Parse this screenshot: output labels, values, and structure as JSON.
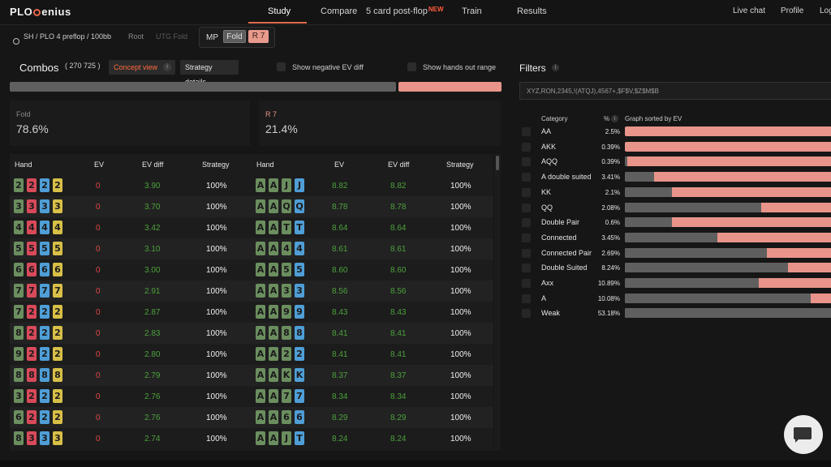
{
  "brand": {
    "left": "PLO",
    "right": "enius"
  },
  "nav": {
    "tabs": [
      "Study",
      "Compare",
      "5 card post-flop",
      "Train",
      "Results"
    ],
    "new_badge": "NEW",
    "right": [
      "Live chat",
      "Profile",
      "Log"
    ]
  },
  "breadcrumb": {
    "game": "SH / PLO 4 preflop / 100bb",
    "root": "Root",
    "utg": "UTG Fold"
  },
  "action": {
    "position": "MP",
    "fold": "Fold",
    "raise": "R 7"
  },
  "combos": {
    "title": "Combos",
    "count": "( 270 725 )",
    "concept_view": "Concept view",
    "info": "i",
    "strategy_details": "Strategy details",
    "show_negative": "Show negative EV diff",
    "show_hands_out": "Show hands out range",
    "fold_fraction": 0.786,
    "fold_label": "Fold",
    "fold_value": "78.6%",
    "raise_label": "R 7",
    "raise_value": "21.4%"
  },
  "colors": {
    "spade": "#6b8e5f",
    "heart": "#d84a5a",
    "diamond": "#4f9ed6",
    "club": "#d8bf47",
    "fold_bar": "#5f5f5f",
    "raise_bar": "#e8948a",
    "positive": "#4ca13c",
    "zero": "#e04646",
    "accent": "#ff6a3d"
  },
  "table": {
    "headers": [
      "Hand",
      "EV",
      "EV diff",
      "Strategy",
      "Hand",
      "EV",
      "EV diff",
      "Strategy"
    ],
    "left": [
      {
        "cards": [
          [
            "2",
            "g"
          ],
          [
            "2",
            "r"
          ],
          [
            "2",
            "b"
          ],
          [
            "2",
            "y"
          ]
        ],
        "ev": "0",
        "evdiff": "3.90",
        "strategy": "100%"
      },
      {
        "cards": [
          [
            "3",
            "g"
          ],
          [
            "3",
            "r"
          ],
          [
            "3",
            "b"
          ],
          [
            "3",
            "y"
          ]
        ],
        "ev": "0",
        "evdiff": "3.70",
        "strategy": "100%"
      },
      {
        "cards": [
          [
            "4",
            "g"
          ],
          [
            "4",
            "r"
          ],
          [
            "4",
            "b"
          ],
          [
            "4",
            "y"
          ]
        ],
        "ev": "0",
        "evdiff": "3.42",
        "strategy": "100%"
      },
      {
        "cards": [
          [
            "5",
            "g"
          ],
          [
            "5",
            "r"
          ],
          [
            "5",
            "b"
          ],
          [
            "5",
            "y"
          ]
        ],
        "ev": "0",
        "evdiff": "3.10",
        "strategy": "100%"
      },
      {
        "cards": [
          [
            "6",
            "g"
          ],
          [
            "6",
            "r"
          ],
          [
            "6",
            "b"
          ],
          [
            "6",
            "y"
          ]
        ],
        "ev": "0",
        "evdiff": "3.00",
        "strategy": "100%"
      },
      {
        "cards": [
          [
            "7",
            "g"
          ],
          [
            "7",
            "r"
          ],
          [
            "7",
            "b"
          ],
          [
            "7",
            "y"
          ]
        ],
        "ev": "0",
        "evdiff": "2.91",
        "strategy": "100%"
      },
      {
        "cards": [
          [
            "7",
            "g"
          ],
          [
            "2",
            "r"
          ],
          [
            "2",
            "b"
          ],
          [
            "2",
            "y"
          ]
        ],
        "ev": "0",
        "evdiff": "2.87",
        "strategy": "100%"
      },
      {
        "cards": [
          [
            "8",
            "g"
          ],
          [
            "2",
            "r"
          ],
          [
            "2",
            "b"
          ],
          [
            "2",
            "y"
          ]
        ],
        "ev": "0",
        "evdiff": "2.83",
        "strategy": "100%"
      },
      {
        "cards": [
          [
            "9",
            "g"
          ],
          [
            "2",
            "r"
          ],
          [
            "2",
            "b"
          ],
          [
            "2",
            "y"
          ]
        ],
        "ev": "0",
        "evdiff": "2.80",
        "strategy": "100%"
      },
      {
        "cards": [
          [
            "8",
            "g"
          ],
          [
            "8",
            "r"
          ],
          [
            "8",
            "b"
          ],
          [
            "8",
            "y"
          ]
        ],
        "ev": "0",
        "evdiff": "2.79",
        "strategy": "100%"
      },
      {
        "cards": [
          [
            "3",
            "g"
          ],
          [
            "2",
            "r"
          ],
          [
            "2",
            "b"
          ],
          [
            "2",
            "y"
          ]
        ],
        "ev": "0",
        "evdiff": "2.76",
        "strategy": "100%"
      },
      {
        "cards": [
          [
            "6",
            "g"
          ],
          [
            "2",
            "r"
          ],
          [
            "2",
            "b"
          ],
          [
            "2",
            "y"
          ]
        ],
        "ev": "0",
        "evdiff": "2.76",
        "strategy": "100%"
      },
      {
        "cards": [
          [
            "8",
            "g"
          ],
          [
            "3",
            "r"
          ],
          [
            "3",
            "b"
          ],
          [
            "3",
            "y"
          ]
        ],
        "ev": "0",
        "evdiff": "2.74",
        "strategy": "100%"
      }
    ],
    "right": [
      {
        "cards": [
          [
            "A",
            "g"
          ],
          [
            "A",
            "g"
          ],
          [
            "J",
            "g"
          ],
          [
            "J",
            "b"
          ]
        ],
        "ev": "8.82",
        "evdiff": "8.82",
        "strategy": "100%"
      },
      {
        "cards": [
          [
            "A",
            "g"
          ],
          [
            "A",
            "g"
          ],
          [
            "Q",
            "g"
          ],
          [
            "Q",
            "b"
          ]
        ],
        "ev": "8.78",
        "evdiff": "8.78",
        "strategy": "100%"
      },
      {
        "cards": [
          [
            "A",
            "g"
          ],
          [
            "A",
            "g"
          ],
          [
            "T",
            "g"
          ],
          [
            "T",
            "b"
          ]
        ],
        "ev": "8.64",
        "evdiff": "8.64",
        "strategy": "100%"
      },
      {
        "cards": [
          [
            "A",
            "g"
          ],
          [
            "A",
            "g"
          ],
          [
            "4",
            "g"
          ],
          [
            "4",
            "b"
          ]
        ],
        "ev": "8.61",
        "evdiff": "8.61",
        "strategy": "100%"
      },
      {
        "cards": [
          [
            "A",
            "g"
          ],
          [
            "A",
            "g"
          ],
          [
            "5",
            "g"
          ],
          [
            "5",
            "b"
          ]
        ],
        "ev": "8.60",
        "evdiff": "8.60",
        "strategy": "100%"
      },
      {
        "cards": [
          [
            "A",
            "g"
          ],
          [
            "A",
            "g"
          ],
          [
            "3",
            "g"
          ],
          [
            "3",
            "b"
          ]
        ],
        "ev": "8.56",
        "evdiff": "8.56",
        "strategy": "100%"
      },
      {
        "cards": [
          [
            "A",
            "g"
          ],
          [
            "A",
            "g"
          ],
          [
            "9",
            "g"
          ],
          [
            "9",
            "b"
          ]
        ],
        "ev": "8.43",
        "evdiff": "8.43",
        "strategy": "100%"
      },
      {
        "cards": [
          [
            "A",
            "g"
          ],
          [
            "A",
            "g"
          ],
          [
            "8",
            "g"
          ],
          [
            "8",
            "b"
          ]
        ],
        "ev": "8.41",
        "evdiff": "8.41",
        "strategy": "100%"
      },
      {
        "cards": [
          [
            "A",
            "g"
          ],
          [
            "A",
            "g"
          ],
          [
            "2",
            "g"
          ],
          [
            "2",
            "b"
          ]
        ],
        "ev": "8.41",
        "evdiff": "8.41",
        "strategy": "100%"
      },
      {
        "cards": [
          [
            "A",
            "g"
          ],
          [
            "A",
            "g"
          ],
          [
            "K",
            "g"
          ],
          [
            "K",
            "b"
          ]
        ],
        "ev": "8.37",
        "evdiff": "8.37",
        "strategy": "100%"
      },
      {
        "cards": [
          [
            "A",
            "g"
          ],
          [
            "A",
            "g"
          ],
          [
            "7",
            "g"
          ],
          [
            "7",
            "b"
          ]
        ],
        "ev": "8.34",
        "evdiff": "8.34",
        "strategy": "100%"
      },
      {
        "cards": [
          [
            "A",
            "g"
          ],
          [
            "A",
            "g"
          ],
          [
            "6",
            "g"
          ],
          [
            "6",
            "b"
          ]
        ],
        "ev": "8.29",
        "evdiff": "8.29",
        "strategy": "100%"
      },
      {
        "cards": [
          [
            "A",
            "g"
          ],
          [
            "A",
            "g"
          ],
          [
            "J",
            "g"
          ],
          [
            "T",
            "b"
          ]
        ],
        "ev": "8.24",
        "evdiff": "8.24",
        "strategy": "100%"
      }
    ]
  },
  "filters": {
    "title": "Filters",
    "info": "i",
    "input_value": "XYZ,RON,2345,!(ATQJ),4567+,$F$V,$Z$M$B",
    "col_category": "Category",
    "col_pct": "%",
    "col_graph": "Graph sorted by EV",
    "rows": [
      {
        "name": "AA",
        "pct": "2.5%",
        "fold": 0.0
      },
      {
        "name": "AKK",
        "pct": "0.39%",
        "fold": 0.0
      },
      {
        "name": "AQQ",
        "pct": "0.39%",
        "fold": 0.01
      },
      {
        "name": "A double suited",
        "pct": "3.41%",
        "fold": 0.14
      },
      {
        "name": "KK",
        "pct": "2.1%",
        "fold": 0.23
      },
      {
        "name": "QQ",
        "pct": "2.08%",
        "fold": 0.66
      },
      {
        "name": "Double Pair",
        "pct": "0.6%",
        "fold": 0.23
      },
      {
        "name": "Connected",
        "pct": "3.45%",
        "fold": 0.45
      },
      {
        "name": "Connected Pair",
        "pct": "2.69%",
        "fold": 0.69
      },
      {
        "name": "Double Suited",
        "pct": "8.24%",
        "fold": 0.79
      },
      {
        "name": "Axx",
        "pct": "10.89%",
        "fold": 0.65
      },
      {
        "name": "A",
        "pct": "10.08%",
        "fold": 0.9
      },
      {
        "name": "Weak",
        "pct": "53.18%",
        "fold": 1.0
      }
    ]
  }
}
